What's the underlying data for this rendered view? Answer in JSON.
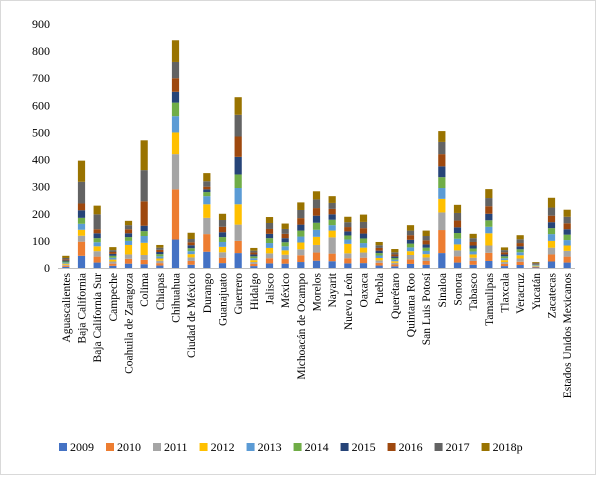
{
  "chart_data": {
    "type": "bar",
    "stacked": true,
    "title": "",
    "xlabel": "",
    "ylabel": "",
    "ylim": [
      0,
      900
    ],
    "yticks": [
      0,
      100,
      200,
      300,
      400,
      500,
      600,
      700,
      800,
      900
    ],
    "grid": false,
    "legend_position": "bottom",
    "categories": [
      "Aguascalientes",
      "Baja California",
      "Baja California Sur",
      "Campeche",
      "Coahuila de Zaragoza",
      "Colima",
      "Chiapas",
      "Chihuahua",
      "Ciudad de México",
      "Durango",
      "Guanajuato",
      "Guerrero",
      "Hidalgo",
      "Jalisco",
      "México",
      "Michoacán de Ocampo",
      "Morelos",
      "Nayarit",
      "Nuevo León",
      "Oaxaca",
      "Puebla",
      "Querétaro",
      "Quintana Roo",
      "San Luis Potosí",
      "Sinaloa",
      "Sonora",
      "Tabasco",
      "Tamaulipas",
      "Tlaxcala",
      "Veracruz",
      "Yucatán",
      "Zacatecas",
      "Estados Unidos Mexicanos"
    ],
    "series": [
      {
        "name": "2009",
        "color": "#4472c4",
        "values": [
          4,
          45,
          20,
          8,
          16,
          14,
          9,
          105,
          12,
          60,
          18,
          55,
          7,
          17,
          16,
          22,
          27,
          25,
          17,
          18,
          9,
          6,
          15,
          12,
          55,
          20,
          12,
          26,
          7,
          11,
          2,
          24,
          20
        ]
      },
      {
        "name": "2010",
        "color": "#ed7d31",
        "values": [
          4,
          52,
          22,
          8,
          18,
          16,
          9,
          185,
          14,
          65,
          20,
          45,
          8,
          19,
          17,
          25,
          30,
          28,
          19,
          20,
          10,
          7,
          17,
          14,
          85,
          23,
          14,
          30,
          8,
          12,
          2,
          26,
          22
        ]
      },
      {
        "name": "2011",
        "color": "#a5a5a5",
        "values": [
          4,
          22,
          20,
          8,
          16,
          18,
          9,
          130,
          13,
          60,
          20,
          60,
          7,
          18,
          16,
          22,
          28,
          60,
          18,
          19,
          9,
          6,
          16,
          13,
          65,
          22,
          12,
          27,
          7,
          12,
          2,
          25,
          21
        ]
      },
      {
        "name": "2012",
        "color": "#ffc000",
        "values": [
          4,
          22,
          18,
          7,
          35,
          45,
          8,
          80,
          12,
          50,
          20,
          75,
          7,
          20,
          16,
          25,
          30,
          25,
          35,
          18,
          9,
          6,
          14,
          12,
          50,
          22,
          12,
          45,
          7,
          12,
          2,
          25,
          20
        ]
      },
      {
        "name": "2013",
        "color": "#5b9bd5",
        "values": [
          4,
          22,
          15,
          7,
          15,
          25,
          8,
          60,
          11,
          30,
          18,
          60,
          7,
          18,
          15,
          22,
          26,
          20,
          16,
          17,
          9,
          6,
          14,
          12,
          40,
          21,
          11,
          24,
          7,
          11,
          2,
          25,
          20
        ]
      },
      {
        "name": "2014",
        "color": "#70ad47",
        "values": [
          4,
          22,
          15,
          7,
          14,
          18,
          8,
          50,
          11,
          15,
          18,
          50,
          7,
          18,
          15,
          22,
          26,
          20,
          15,
          17,
          9,
          6,
          14,
          12,
          40,
          21,
          11,
          24,
          7,
          11,
          2,
          22,
          20
        ]
      },
      {
        "name": "2015",
        "color": "#264478",
        "values": [
          4,
          28,
          18,
          7,
          14,
          20,
          8,
          40,
          11,
          10,
          18,
          65,
          7,
          16,
          15,
          22,
          26,
          20,
          15,
          18,
          9,
          6,
          14,
          12,
          40,
          21,
          11,
          24,
          7,
          11,
          2,
          22,
          20
        ]
      },
      {
        "name": "2016",
        "color": "#9e480e",
        "values": [
          4,
          25,
          15,
          7,
          15,
          90,
          8,
          50,
          11,
          10,
          20,
          75,
          7,
          18,
          16,
          24,
          28,
          20,
          16,
          20,
          10,
          7,
          17,
          15,
          45,
          25,
          13,
          28,
          8,
          12,
          2,
          24,
          22
        ]
      },
      {
        "name": "2017",
        "color": "#636363",
        "values": [
          5,
          80,
          55,
          7,
          15,
          115,
          8,
          60,
          12,
          20,
          25,
          80,
          7,
          22,
          18,
          30,
          32,
          22,
          18,
          23,
          10,
          8,
          17,
          16,
          45,
          28,
          14,
          30,
          8,
          14,
          3,
          30,
          24
        ]
      },
      {
        "name": "2018p",
        "color": "#997300",
        "values": [
          8,
          78,
          32,
          11,
          16,
          110,
          10,
          80,
          23,
          30,
          23,
          65,
          10,
          22,
          20,
          28,
          30,
          25,
          20,
          27,
          12,
          12,
          20,
          20,
          40,
          30,
          16,
          33,
          10,
          15,
          3,
          36,
          26
        ]
      }
    ]
  }
}
